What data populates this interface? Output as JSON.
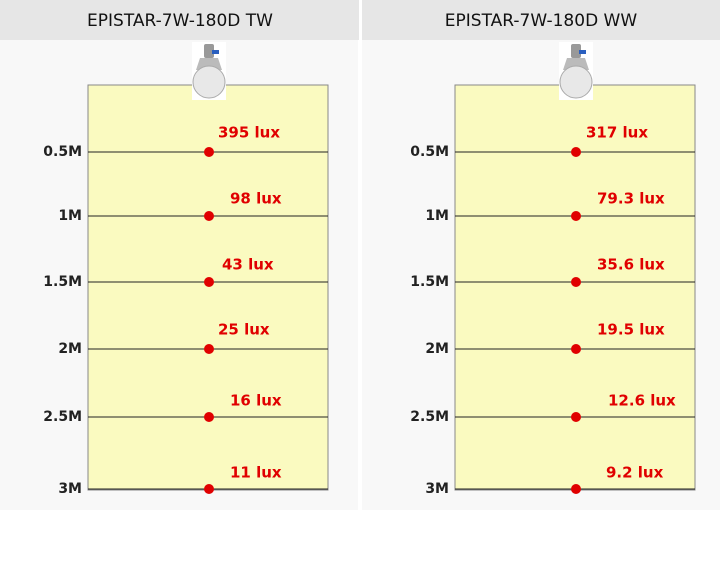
{
  "panels": [
    {
      "title": "EPISTAR-7W-180D TW",
      "rows": [
        {
          "distance": "0.5M",
          "lux": "395 lux"
        },
        {
          "distance": "1M",
          "lux": "98 lux"
        },
        {
          "distance": "1.5M",
          "lux": "43 lux"
        },
        {
          "distance": "2M",
          "lux": "25 lux"
        },
        {
          "distance": "2.5M",
          "lux": "16 lux"
        },
        {
          "distance": "3M",
          "lux": "11 lux"
        }
      ]
    },
    {
      "title": "EPISTAR-7W-180D WW",
      "rows": [
        {
          "distance": "0.5M",
          "lux": "317 lux"
        },
        {
          "distance": "1M",
          "lux": "79.3 lux"
        },
        {
          "distance": "1.5M",
          "lux": "35.6 lux"
        },
        {
          "distance": "2M",
          "lux": "19.5 lux"
        },
        {
          "distance": "2.5M",
          "lux": "12.6 lux"
        },
        {
          "distance": "3M",
          "lux": "9.2 lux"
        }
      ]
    }
  ]
}
